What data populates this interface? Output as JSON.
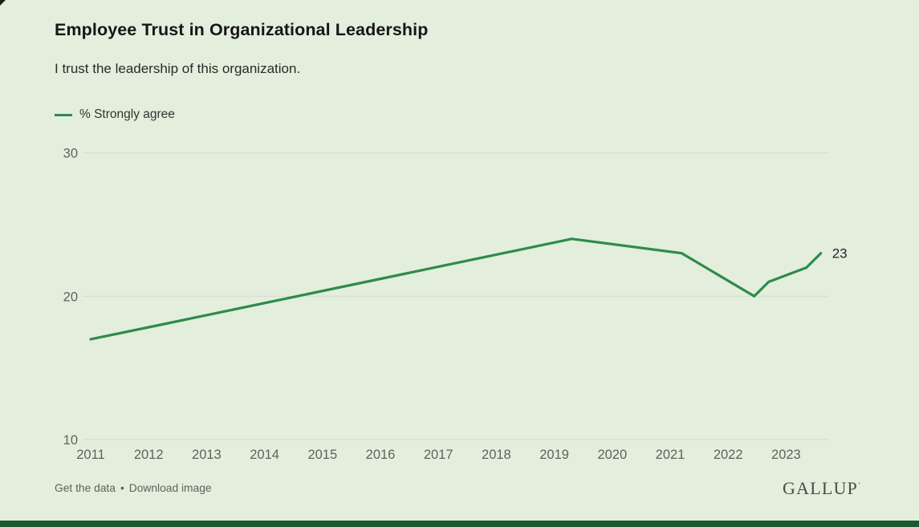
{
  "header": {
    "title": "Employee Trust in Organizational Leadership",
    "subtitle": "I trust the leadership of this organization."
  },
  "legend": {
    "label": "% Strongly agree"
  },
  "chart_data": {
    "type": "line",
    "title": "Employee Trust in Organizational Leadership",
    "subtitle": "I trust the leadership of this organization.",
    "xlabel": "",
    "ylabel": "",
    "x_ticks": [
      "2011",
      "2012",
      "2013",
      "2014",
      "2015",
      "2016",
      "2017",
      "2018",
      "2019",
      "2020",
      "2021",
      "2022",
      "2023"
    ],
    "y_ticks": [
      30,
      20,
      10
    ],
    "ylim": [
      10,
      31.5
    ],
    "xlim": [
      2010.85,
      2023.75
    ],
    "grid": "horizontal",
    "legend_position": "top-left",
    "end_label": "23",
    "series": [
      {
        "name": "% Strongly agree",
        "color": "#2e8b4a",
        "points": [
          {
            "x": 2011.0,
            "y": 17
          },
          {
            "x": 2012.2,
            "y": 18
          },
          {
            "x": 2019.3,
            "y": 24
          },
          {
            "x": 2021.2,
            "y": 23
          },
          {
            "x": 2022.45,
            "y": 20
          },
          {
            "x": 2022.7,
            "y": 21
          },
          {
            "x": 2023.35,
            "y": 22
          },
          {
            "x": 2023.6,
            "y": 23
          }
        ]
      }
    ]
  },
  "footer": {
    "links": [
      "Get the data",
      "Download image"
    ],
    "separator": "•",
    "brand": "GALLUP",
    "trademark": "’"
  },
  "colors": {
    "background": "#e3eedd",
    "accent": "#2e8b4a",
    "grid": "#d5dad1",
    "bottom_bar": "#1d5a34"
  }
}
